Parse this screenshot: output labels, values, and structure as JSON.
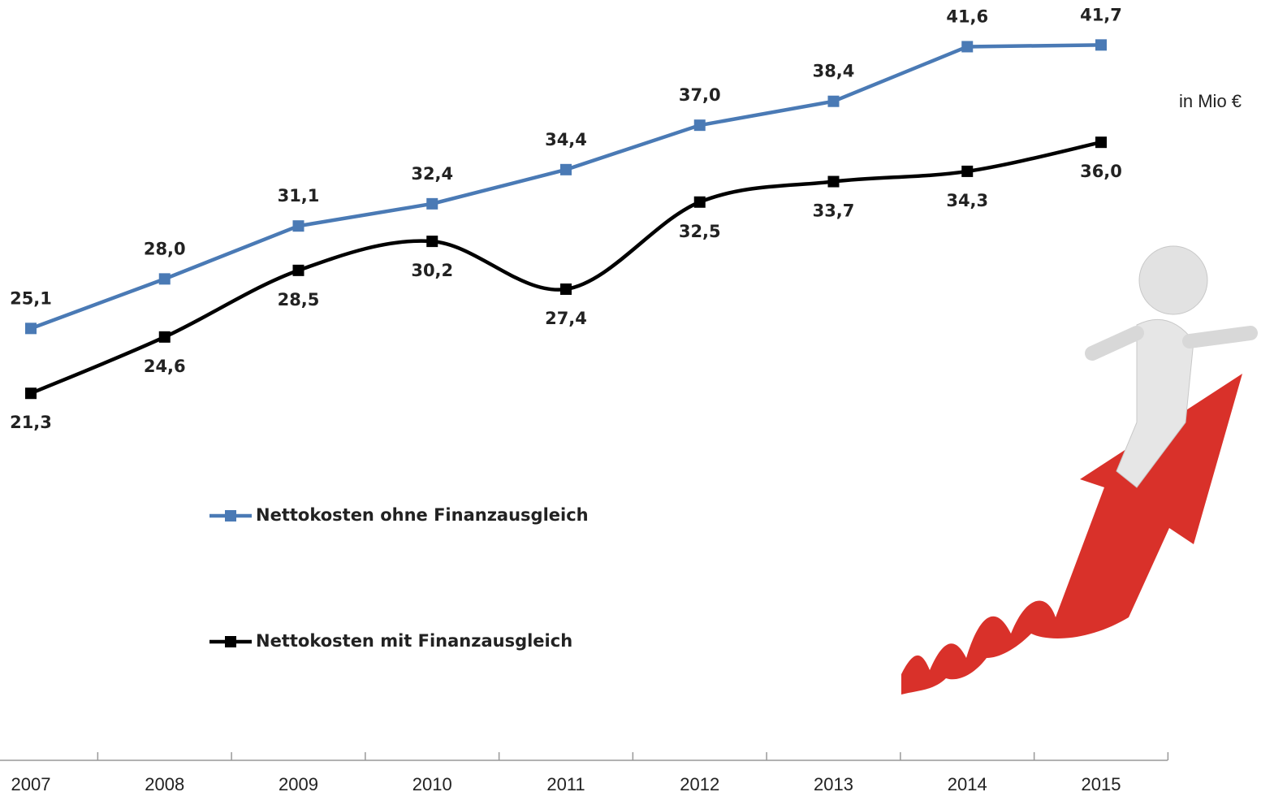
{
  "chart_data": {
    "type": "line",
    "unit_label": "in Mio €",
    "categories": [
      "2007",
      "2008",
      "2009",
      "2010",
      "2011",
      "2012",
      "2013",
      "2014",
      "2015"
    ],
    "series": [
      {
        "name": "Nettokosten ohne Finanzausgleich",
        "color": "#4a7ab5",
        "smooth": false,
        "values": [
          25.1,
          28.0,
          31.1,
          32.4,
          34.4,
          37.0,
          38.4,
          41.6,
          41.7
        ],
        "value_labels": [
          "25,1",
          "28,0",
          "31,1",
          "32,4",
          "34,4",
          "37,0",
          "38,4",
          "41,6",
          "41,7"
        ]
      },
      {
        "name": "Nettokosten mit Finanzausgleich",
        "color": "#000000",
        "smooth": true,
        "values": [
          21.3,
          24.6,
          28.5,
          30.2,
          27.4,
          32.5,
          33.7,
          34.3,
          36.0
        ],
        "value_labels": [
          "21,3",
          "24,6",
          "28,5",
          "30,2",
          "27,4",
          "32,5",
          "33,7",
          "34,3",
          "36,0"
        ]
      }
    ],
    "ylim": [
      0,
      44
    ]
  }
}
